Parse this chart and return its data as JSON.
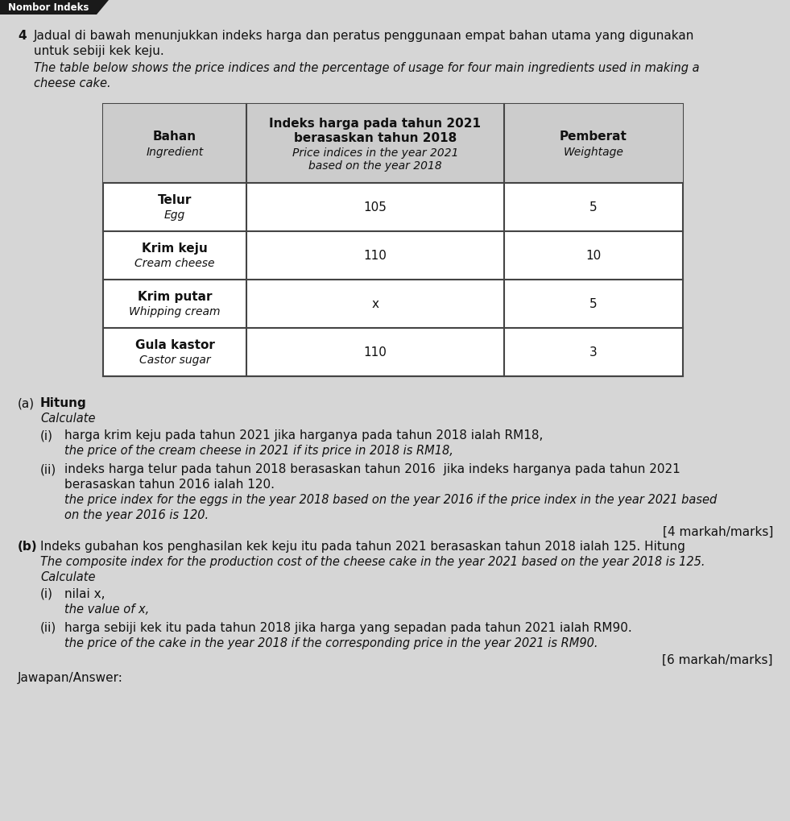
{
  "header_tab": "Nombor Indeks",
  "question_number": "4",
  "q_malay_line1": "Jadual di bawah menunjukkan indeks harga dan peratus penggunaan empat bahan utama yang digunakan",
  "q_malay_line2": "untuk sebiji kek keju.",
  "q_english_line1": "The table below shows the price indices and the percentage of usage for four main ingredients used in making a",
  "q_english_line2": "cheese cake.",
  "col1_header_malay": "Bahan",
  "col1_header_english": "Ingredient",
  "col3_header_malay": "Pemberat",
  "col3_header_english": "Weightage",
  "rows": [
    {
      "malay": "Telur",
      "english": "Egg",
      "index": "105",
      "weight": "5"
    },
    {
      "malay": "Krim keju",
      "english": "Cream cheese",
      "index": "110",
      "weight": "10"
    },
    {
      "malay": "Krim putar",
      "english": "Whipping cream",
      "index": "x",
      "weight": "5"
    },
    {
      "malay": "Gula kastor",
      "english": "Castor sugar",
      "index": "110",
      "weight": "3"
    }
  ],
  "marks_a": "[4 markah/marks]",
  "marks_b": "[6 markah/marks]",
  "jawapan": "Jawapan/Answer:",
  "bg_color": "#d6d6d6",
  "tab_bg": "#2a2a2a",
  "tab_text": "#ffffff",
  "text_color": "#111111",
  "table_border": "#444444",
  "table_bg": "#ffffff",
  "header_bg": "#cccccc"
}
